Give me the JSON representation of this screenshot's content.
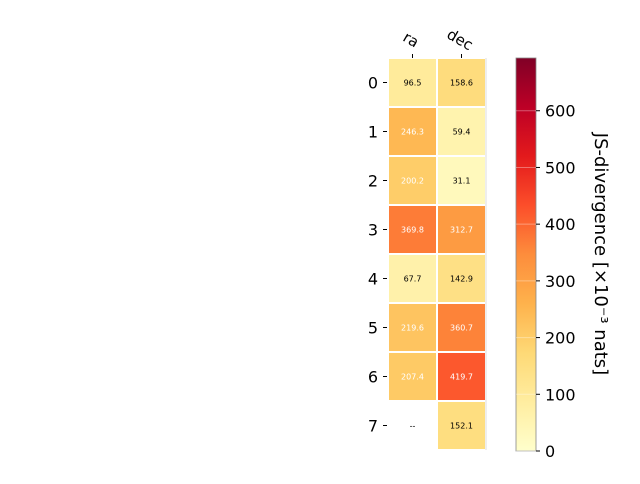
{
  "chart_data": {
    "type": "heatmap",
    "columns": [
      "ra",
      "dec"
    ],
    "rows": [
      "0",
      "1",
      "2",
      "3",
      "4",
      "5",
      "6",
      "7"
    ],
    "values": [
      [
        96.5,
        158.6
      ],
      [
        246.3,
        59.4
      ],
      [
        200.2,
        31.1
      ],
      [
        369.8,
        312.7
      ],
      [
        67.7,
        142.9
      ],
      [
        219.6,
        360.7
      ],
      [
        207.4,
        419.7
      ],
      [
        null,
        152.1
      ]
    ],
    "cell_labels": [
      [
        "96.5",
        "158.6"
      ],
      [
        "246.3",
        "59.4"
      ],
      [
        "200.2",
        "31.1"
      ],
      [
        "369.8",
        "312.7"
      ],
      [
        "67.7",
        "142.9"
      ],
      [
        "219.6",
        "360.7"
      ],
      [
        "207.4",
        "419.7"
      ],
      [
        "--",
        "152.1"
      ]
    ],
    "colorbar": {
      "label": "JS-divergence [×10⁻³ nats]",
      "range": [
        0,
        693
      ],
      "ticks": [
        0,
        100,
        200,
        300,
        400,
        500,
        600
      ],
      "colormap": "YlOrRd"
    }
  }
}
